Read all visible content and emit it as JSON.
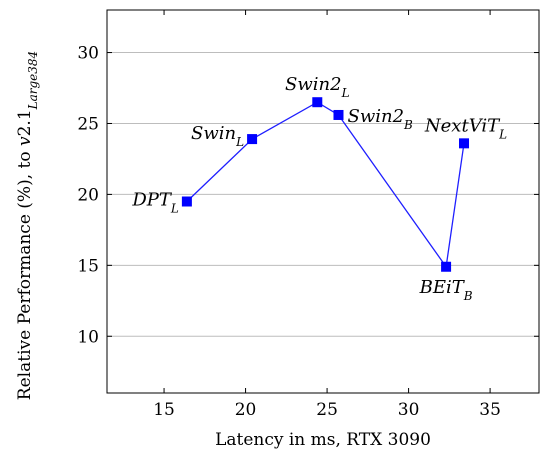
{
  "chart_data": {
    "type": "line",
    "xlabel": "Latency in ms, RTX 3090",
    "ylabel": {
      "main": "Relative Performance (%), to ",
      "italic": "v",
      "rest": "2.1",
      "sub": "Large384"
    },
    "xlim": [
      11.5,
      38
    ],
    "ylim": [
      6,
      33
    ],
    "x_ticks": [
      15,
      20,
      25,
      30,
      35
    ],
    "y_ticks": [
      10,
      15,
      20,
      25,
      30
    ],
    "grid": "horizontal",
    "series": [
      {
        "color": "#0000ff",
        "marker": "square",
        "points": [
          {
            "label": "DPT",
            "sub": "L",
            "x": 16.4,
            "y": 19.5
          },
          {
            "label": "Swin",
            "sub": "L",
            "x": 20.4,
            "y": 23.9
          },
          {
            "label": "Swin2",
            "sub": "L",
            "x": 24.4,
            "y": 26.5
          },
          {
            "label": "Swin2",
            "sub": "B",
            "x": 25.7,
            "y": 25.6
          },
          {
            "label": "BEiT",
            "sub": "B",
            "x": 32.3,
            "y": 14.9
          },
          {
            "label": "NextViT",
            "sub": "L",
            "x": 33.4,
            "y": 23.6
          }
        ]
      }
    ]
  }
}
